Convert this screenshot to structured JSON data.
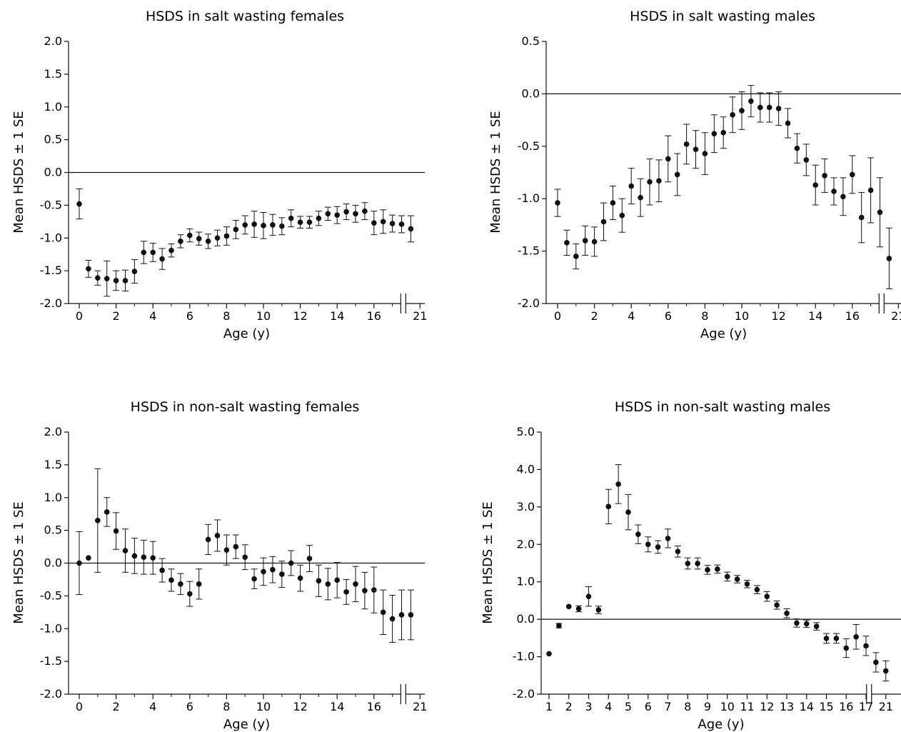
{
  "chart_data": [
    {
      "type": "scatter",
      "title": "HSDS in salt wasting females",
      "xlabel": "Age (y)",
      "ylabel": "Mean HSDS ± 1 SE",
      "ylim": [
        -2.0,
        2.0
      ],
      "yticks": [
        "2.0",
        "1.5",
        "1.0",
        "0.5",
        "0.0",
        "-0.5",
        "-1.0",
        "-1.5",
        "-2.0"
      ],
      "xticks": [
        "0",
        "2",
        "4",
        "6",
        "8",
        "10",
        "12",
        "14",
        "16",
        "21"
      ],
      "axis_break": true,
      "reference_line_y": 0,
      "series": [
        {
          "x": [
            0,
            0.5,
            1,
            1.5,
            2,
            2.5,
            3,
            3.5,
            4,
            4.5,
            5,
            5.5,
            6,
            6.5,
            7,
            7.5,
            8,
            8.5,
            9,
            9.5,
            10,
            10.5,
            11,
            11.5,
            12,
            12.5,
            13,
            13.5,
            14,
            14.5,
            15,
            15.5,
            16,
            16.5,
            17,
            17.5,
            18
          ],
          "y": [
            -0.48,
            -1.47,
            -1.61,
            -1.62,
            -1.65,
            -1.65,
            -1.51,
            -1.22,
            -1.22,
            -1.32,
            -1.19,
            -1.05,
            -0.96,
            -1.01,
            -1.05,
            -1.0,
            -0.97,
            -0.87,
            -0.8,
            -0.79,
            -0.81,
            -0.8,
            -0.82,
            -0.7,
            -0.76,
            -0.76,
            -0.7,
            -0.63,
            -0.65,
            -0.6,
            -0.63,
            -0.59,
            -0.77,
            -0.75,
            -0.78,
            -0.79,
            -0.86
          ],
          "se": [
            0.23,
            0.13,
            0.11,
            0.27,
            0.15,
            0.16,
            0.18,
            0.17,
            0.14,
            0.16,
            0.1,
            0.1,
            0.1,
            0.1,
            0.11,
            0.12,
            0.14,
            0.14,
            0.14,
            0.2,
            0.2,
            0.16,
            0.13,
            0.13,
            0.09,
            0.09,
            0.11,
            0.1,
            0.13,
            0.12,
            0.13,
            0.13,
            0.18,
            0.18,
            0.13,
            0.13,
            0.2
          ]
        }
      ]
    },
    {
      "type": "scatter",
      "title": "HSDS in salt wasting males",
      "xlabel": "Age (y)",
      "ylabel": "Mean HSDS ± 1 SE",
      "ylim": [
        -2.0,
        0.5
      ],
      "yticks": [
        "0.5",
        "0.0",
        "-0.5",
        "-1.0",
        "-1.5",
        "-2.0"
      ],
      "xticks": [
        "0",
        "2",
        "4",
        "6",
        "8",
        "10",
        "12",
        "14",
        "16",
        "21"
      ],
      "axis_break": true,
      "reference_line_y": 0,
      "series": [
        {
          "x": [
            0,
            0.5,
            1,
            1.5,
            2,
            2.5,
            3,
            3.5,
            4,
            4.5,
            5,
            5.5,
            6,
            6.5,
            7,
            7.5,
            8,
            8.5,
            9,
            9.5,
            10,
            10.5,
            11,
            11.5,
            12,
            12.5,
            13,
            13.5,
            14,
            14.5,
            15,
            15.5,
            16,
            16.5,
            17,
            17.5,
            18
          ],
          "y": [
            -1.04,
            -1.42,
            -1.55,
            -1.4,
            -1.41,
            -1.22,
            -1.04,
            -1.16,
            -0.88,
            -0.99,
            -0.84,
            -0.83,
            -0.62,
            -0.77,
            -0.48,
            -0.53,
            -0.57,
            -0.38,
            -0.37,
            -0.2,
            -0.16,
            -0.07,
            -0.13,
            -0.13,
            -0.14,
            -0.28,
            -0.52,
            -0.63,
            -0.87,
            -0.78,
            -0.93,
            -0.98,
            -0.77,
            -1.18,
            -0.92,
            -1.13,
            -1.57
          ],
          "se": [
            0.13,
            0.12,
            0.12,
            0.14,
            0.14,
            0.18,
            0.16,
            0.16,
            0.17,
            0.18,
            0.22,
            0.2,
            0.22,
            0.2,
            0.19,
            0.18,
            0.2,
            0.18,
            0.15,
            0.17,
            0.18,
            0.15,
            0.14,
            0.14,
            0.16,
            0.14,
            0.14,
            0.15,
            0.19,
            0.16,
            0.13,
            0.18,
            0.18,
            0.24,
            0.31,
            0.33,
            0.29
          ]
        }
      ]
    },
    {
      "type": "scatter",
      "title": "HSDS in non-salt wasting females",
      "xlabel": "Age (y)",
      "ylabel": "Mean HSDS ± 1 SE",
      "ylim": [
        -2.0,
        2.0
      ],
      "yticks": [
        "2.0",
        "1.5",
        "1.0",
        "0.5",
        "0.0",
        "-0.5",
        "-1.0",
        "-1.5",
        "-2.0"
      ],
      "xticks": [
        "0",
        "2",
        "4",
        "6",
        "8",
        "10",
        "12",
        "14",
        "16",
        "21"
      ],
      "axis_break": true,
      "reference_line_y": 0,
      "series": [
        {
          "x": [
            0,
            0.5,
            1,
            1.5,
            2,
            2.5,
            3,
            3.5,
            4,
            4.5,
            5,
            5.5,
            6,
            6.5,
            7,
            7.5,
            8,
            8.5,
            9,
            9.5,
            10,
            10.5,
            11,
            11.5,
            12,
            12.5,
            13,
            13.5,
            14,
            14.5,
            15,
            15.5,
            16,
            16.5,
            17,
            17.5,
            18
          ],
          "y": [
            0.0,
            0.08,
            0.65,
            0.78,
            0.49,
            0.19,
            0.11,
            0.09,
            0.08,
            -0.11,
            -0.26,
            -0.32,
            -0.47,
            -0.32,
            0.36,
            0.42,
            0.2,
            0.25,
            0.09,
            -0.24,
            -0.13,
            -0.1,
            -0.17,
            0.0,
            -0.23,
            0.07,
            -0.27,
            -0.32,
            -0.26,
            -0.44,
            -0.32,
            -0.42,
            -0.41,
            -0.75,
            -0.85,
            -0.79,
            -0.79
          ],
          "se": [
            0.48,
            0.0,
            0.79,
            0.22,
            0.28,
            0.33,
            0.27,
            0.26,
            0.25,
            0.18,
            0.17,
            0.16,
            0.19,
            0.23,
            0.23,
            0.24,
            0.23,
            0.18,
            0.19,
            0.15,
            0.21,
            0.2,
            0.2,
            0.19,
            0.2,
            0.2,
            0.24,
            0.24,
            0.27,
            0.19,
            0.27,
            0.28,
            0.35,
            0.34,
            0.36,
            0.38,
            0.38
          ]
        }
      ]
    },
    {
      "type": "scatter",
      "title": "HSDS in non-salt wasting males",
      "xlabel": "Age (y)",
      "ylabel": "Mean HSDS ± 1 SE",
      "ylim": [
        -2.0,
        5.0
      ],
      "yticks": [
        "5.0",
        "4.0",
        "3.0",
        "2.0",
        "1.0",
        "0.0",
        "-1.0",
        "-2.0"
      ],
      "xticks": [
        "1",
        "2",
        "3",
        "4",
        "5",
        "6",
        "7",
        "8",
        "9",
        "10",
        "11",
        "12",
        "13",
        "14",
        "15",
        "16",
        "17",
        "21"
      ],
      "axis_break": true,
      "reference_line_y": 0,
      "series": [
        {
          "x": [
            1,
            1.5,
            2,
            2.5,
            3,
            3.5,
            4,
            4.5,
            5,
            5.5,
            6,
            6.5,
            7,
            7.5,
            8,
            8.5,
            9,
            9.5,
            10,
            10.5,
            11,
            11.5,
            12,
            12.5,
            13,
            13.5,
            14,
            14.5,
            15,
            15.5,
            16,
            16.5,
            17,
            17.5,
            18
          ],
          "y": [
            -0.92,
            -0.17,
            0.34,
            0.28,
            0.61,
            0.25,
            3.01,
            3.61,
            2.86,
            2.27,
            2.0,
            1.93,
            2.16,
            1.81,
            1.49,
            1.49,
            1.32,
            1.34,
            1.14,
            1.07,
            0.94,
            0.79,
            0.61,
            0.38,
            0.16,
            -0.1,
            -0.12,
            -0.19,
            -0.51,
            -0.51,
            -0.77,
            -0.47,
            -0.71,
            -1.15,
            -1.38
          ],
          "se": [
            0.0,
            0.06,
            0.0,
            0.08,
            0.26,
            0.1,
            0.46,
            0.52,
            0.47,
            0.25,
            0.2,
            0.17,
            0.25,
            0.15,
            0.15,
            0.15,
            0.12,
            0.11,
            0.12,
            0.1,
            0.1,
            0.11,
            0.13,
            0.11,
            0.12,
            0.11,
            0.1,
            0.1,
            0.13,
            0.13,
            0.25,
            0.33,
            0.26,
            0.26,
            0.27
          ]
        }
      ]
    }
  ]
}
